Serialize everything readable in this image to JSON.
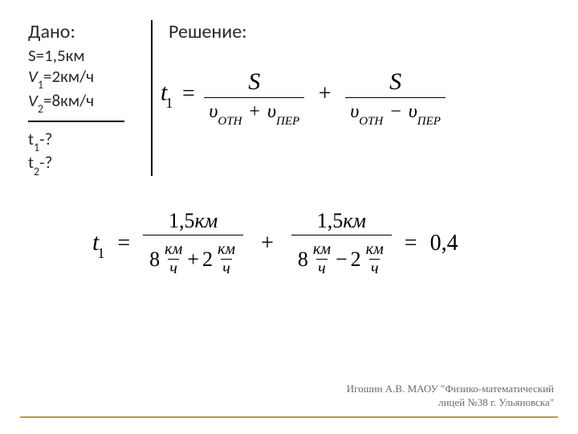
{
  "given": {
    "title": "Дано:",
    "s_label": "S=1,5км",
    "v1_pref": "V",
    "v1_sub": "1",
    "v1_val": "=2км/ч",
    "v2_pref": "V",
    "v2_sub": "2",
    "v2_val": "=8км/ч",
    "t1_pref": "t",
    "t1_sub": "1",
    "t1_val": "-?",
    "t2_pref": "t",
    "t2_sub": "2",
    "t2_val": "-?"
  },
  "solution": {
    "title": "Решение:"
  },
  "formula1": {
    "lhs_var": "t",
    "lhs_sub": "1",
    "eq": "=",
    "num1": "S",
    "den1_v1": "υ",
    "den1_sub1": "ОТН",
    "den1_op": "+",
    "den1_v2": "υ",
    "den1_sub2": "ПЕР",
    "plus": "+",
    "num2": "S",
    "den2_v1": "υ",
    "den2_sub1": "ОТН",
    "den2_op": "−",
    "den2_v2": "υ",
    "den2_sub2": "ПЕР"
  },
  "formula2": {
    "lhs_var": "t",
    "lhs_sub": "1",
    "eq": "=",
    "num1": "1,5",
    "num1_unit": "км",
    "d1_n1": "8",
    "d1_unit_top": "км",
    "d1_unit_bot": "ч",
    "d1_op": "+",
    "d1_n2": "2",
    "plus": "+",
    "num2": "1,5",
    "num2_unit": "км",
    "d2_n1": "8",
    "d2_op": "−",
    "d2_n2": "2",
    "result_eq": "=",
    "result": "0,4"
  },
  "footer": {
    "line1": "Игошин А.В. МАОУ \"Физико-математический",
    "line2": "лицей №38 г. Ульяновска\""
  },
  "colors": {
    "text": "#2a2a2a",
    "line": "#000000",
    "footer_text": "#6a6a6a",
    "footer_rule": "#b89858",
    "bg": "#ffffff"
  }
}
